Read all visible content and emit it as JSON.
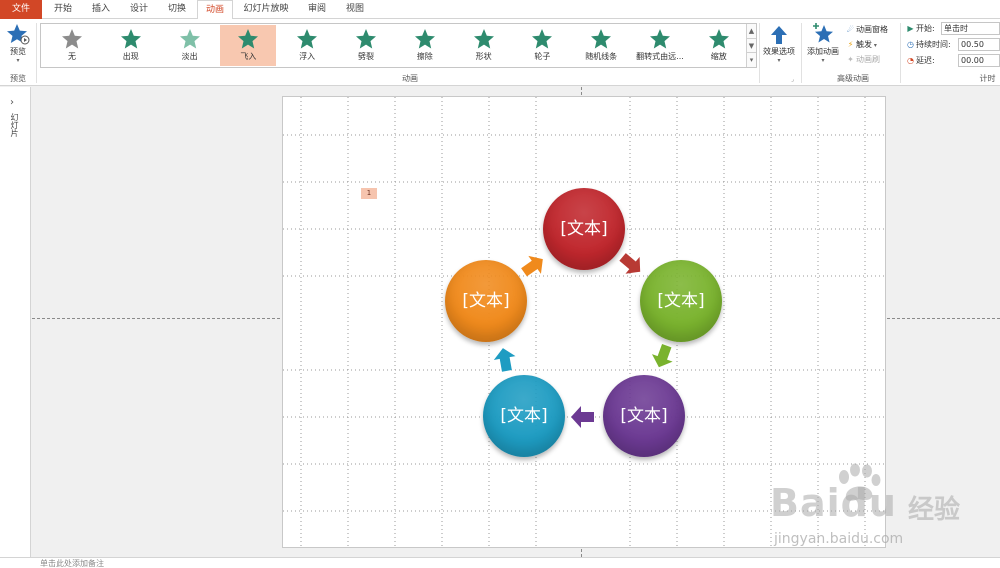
{
  "tabs": [
    {
      "label": "文件",
      "name": "tab-file"
    },
    {
      "label": "开始",
      "name": "tab-home"
    },
    {
      "label": "插入",
      "name": "tab-insert"
    },
    {
      "label": "设计",
      "name": "tab-design"
    },
    {
      "label": "切换",
      "name": "tab-transitions"
    },
    {
      "label": "动画",
      "name": "tab-animations"
    },
    {
      "label": "幻灯片放映",
      "name": "tab-slideshow"
    },
    {
      "label": "审阅",
      "name": "tab-review"
    },
    {
      "label": "视图",
      "name": "tab-view"
    }
  ],
  "ribbon": {
    "preview": {
      "label": "预览",
      "group_label": "预览"
    },
    "gallery": {
      "group_label": "动画",
      "items": [
        {
          "label": "无",
          "name": "anim-none",
          "color": "#8c8c8c",
          "selected": false
        },
        {
          "label": "出现",
          "name": "anim-appear",
          "color": "#2e8b6e",
          "selected": false
        },
        {
          "label": "淡出",
          "name": "anim-fade",
          "color": "#7fc0a8",
          "selected": false
        },
        {
          "label": "飞入",
          "name": "anim-fly-in",
          "color": "#2e8b6e",
          "selected": true
        },
        {
          "label": "浮入",
          "name": "anim-float-in",
          "color": "#2e8b6e",
          "selected": false
        },
        {
          "label": "劈裂",
          "name": "anim-split",
          "color": "#2e8b6e",
          "selected": false
        },
        {
          "label": "擦除",
          "name": "anim-wipe",
          "color": "#2e8b6e",
          "selected": false
        },
        {
          "label": "形状",
          "name": "anim-shape",
          "color": "#2e8b6e",
          "selected": false
        },
        {
          "label": "轮子",
          "name": "anim-wheel",
          "color": "#2e8b6e",
          "selected": false
        },
        {
          "label": "随机线条",
          "name": "anim-random-bars",
          "color": "#2e8b6e",
          "selected": false
        },
        {
          "label": "翻转式由远...",
          "name": "anim-grow-turn",
          "color": "#2e8b6e",
          "selected": false
        },
        {
          "label": "缩放",
          "name": "anim-zoom",
          "color": "#2e8b6e",
          "selected": false
        }
      ]
    },
    "effect_options": {
      "label": "效果选项"
    },
    "advanced": {
      "group_label": "高级动画",
      "add_animation": "添加动画",
      "animation_pane": "动画窗格",
      "trigger": "触发",
      "animation_painter": "动画刷"
    },
    "timing": {
      "group_label": "计时",
      "start_label": "开始:",
      "start_value": "单击时",
      "duration_label": "持续时间:",
      "duration_value": "00.50",
      "delay_label": "延迟:",
      "delay_value": "00.00"
    }
  },
  "left_panel": {
    "label": "幻灯片"
  },
  "slide": {
    "animation_tag": "1",
    "circles": [
      {
        "name": "circle-top",
        "text": "[文本]",
        "color": "#c0272d"
      },
      {
        "name": "circle-right",
        "text": "[文本]",
        "color": "#7ab32e"
      },
      {
        "name": "circle-bottom-right",
        "text": "[文本]",
        "color": "#6c3a93"
      },
      {
        "name": "circle-bottom-left",
        "text": "[文本]",
        "color": "#1e9cc2"
      },
      {
        "name": "circle-left",
        "text": "[文本]",
        "color": "#f08a1c"
      }
    ]
  },
  "notes_bar": {
    "text": "单击此处添加备注"
  },
  "watermark": {
    "brand": "Baidu",
    "brand_cn": "经验",
    "url": "jingyan.baidu.com"
  }
}
